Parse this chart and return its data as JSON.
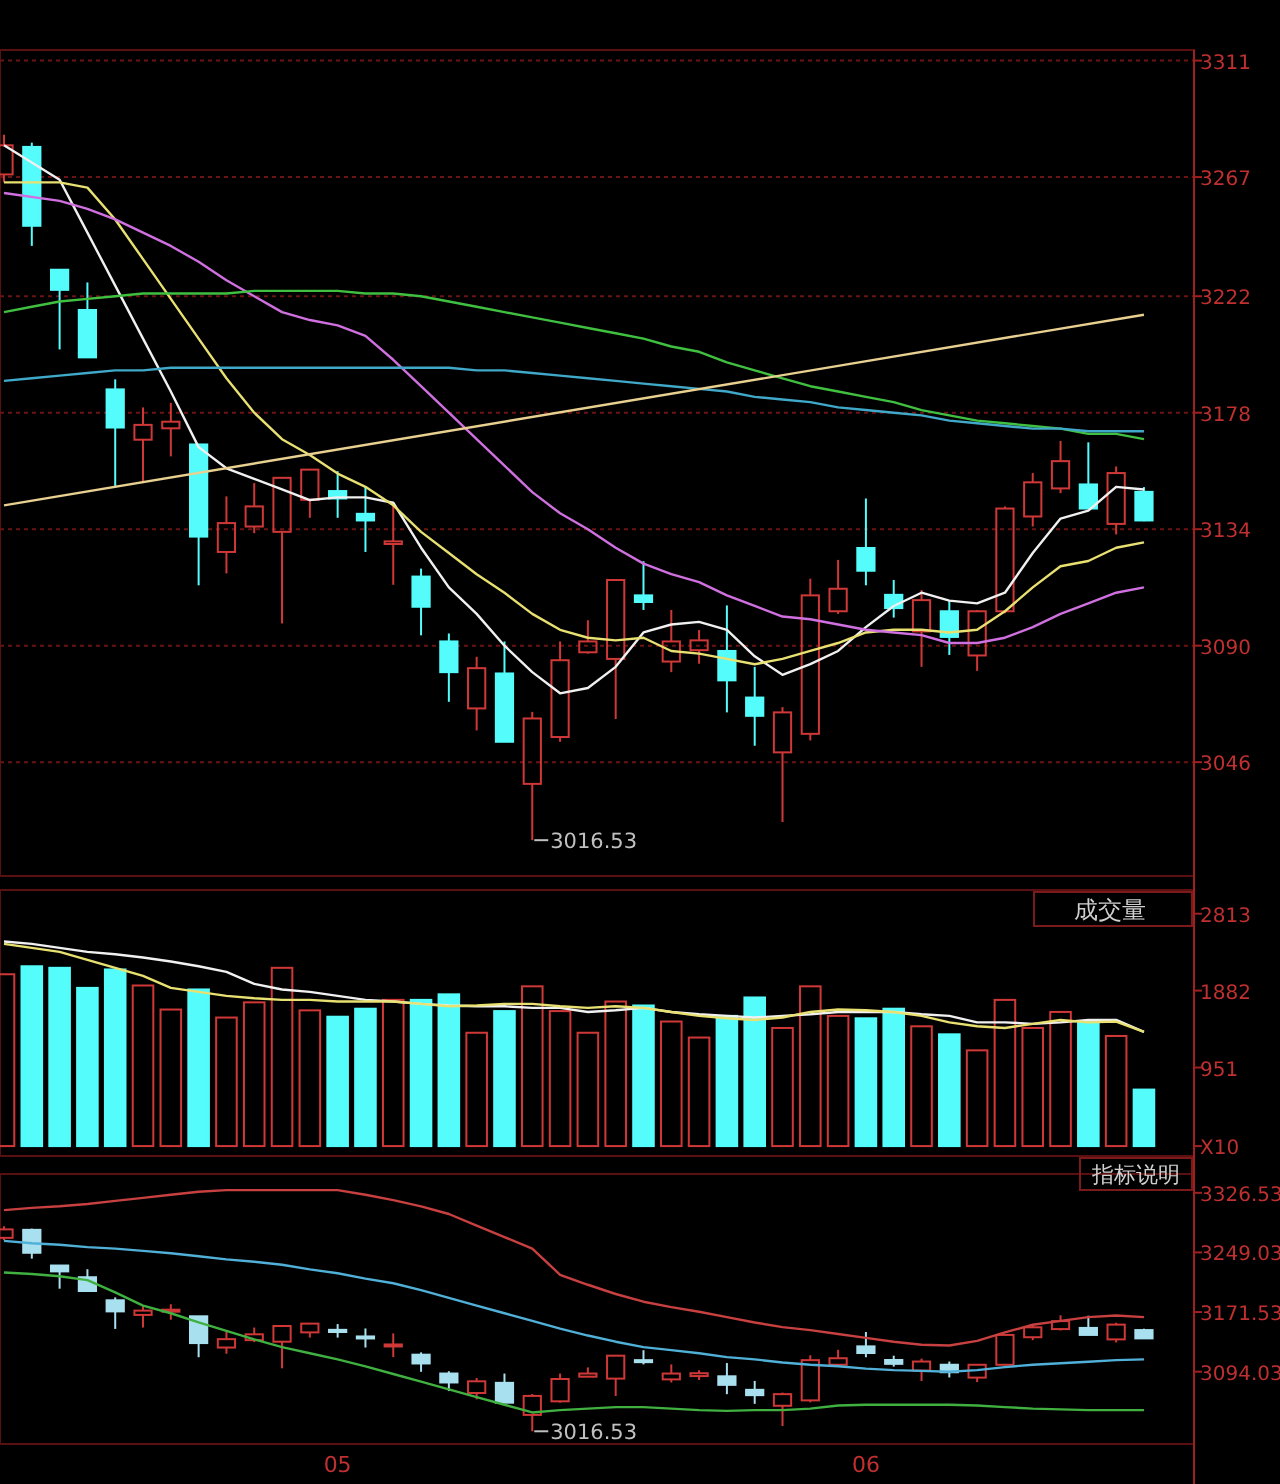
{
  "chart_data": [
    {
      "type": "candlestick",
      "categories": [
        null,
        null,
        null,
        null,
        null,
        null,
        null,
        null,
        null,
        null,
        null,
        null,
        null,
        null,
        null,
        null,
        null,
        null,
        null,
        null,
        null,
        null,
        null,
        null,
        null,
        null,
        null,
        null,
        null,
        null,
        null,
        null,
        null,
        null,
        null,
        null,
        null,
        null,
        null,
        null,
        null,
        null
      ],
      "ohlc": [
        [
          3268,
          3283,
          3265,
          3279
        ],
        [
          3278.4,
          3280,
          3241,
          3248.6
        ],
        [
          3232,
          3232,
          3201.9,
          3224.4
        ],
        [
          3216.8,
          3227.2,
          3198.9,
          3198.9
        ],
        [
          3186.8,
          3190.6,
          3149.6,
          3172.4
        ],
        [
          3167.8,
          3180,
          3151.4,
          3173.4
        ],
        [
          3172.1,
          3181.7,
          3161.5,
          3174.6
        ],
        [
          3166,
          3166,
          3112.8,
          3131.2
        ],
        [
          3125.4,
          3146.4,
          3117.3,
          3136.3
        ],
        [
          3135,
          3151.4,
          3132.5,
          3142.6
        ],
        [
          3133,
          3153.4,
          3098.4,
          3153.4
        ],
        [
          3145.1,
          3156.5,
          3138.3,
          3156.5
        ],
        [
          3148.4,
          3155.9,
          3138.3,
          3145.6
        ],
        [
          3139.8,
          3150.2,
          3125.4,
          3137.3
        ],
        [
          3128.4,
          3143.8,
          3113,
          3129.4
        ],
        [
          3116.1,
          3119.1,
          3093.9,
          3104.7
        ],
        [
          3091.6,
          3094.6,
          3068.8,
          3080
        ],
        [
          3066.3,
          3085.8,
          3058,
          3081.5
        ],
        [
          3079.5,
          3091.6,
          3053.7,
          3053.7
        ],
        [
          3037.8,
          3065,
          3016.53,
          3062.5
        ],
        [
          3055.5,
          3091.6,
          3053.7,
          3084.5
        ],
        [
          3087.5,
          3099.6,
          3087,
          3091.6
        ],
        [
          3085,
          3114.8,
          3062.3,
          3114.8
        ],
        [
          3109,
          3121.9,
          3103.5,
          3106.5
        ],
        [
          3084,
          3103.5,
          3080,
          3091.6
        ],
        [
          3088.3,
          3095.9,
          3083.2,
          3092
        ],
        [
          3088,
          3105.2,
          3064.8,
          3076.9
        ],
        [
          3070.4,
          3082,
          3052.2,
          3063.5
        ],
        [
          3049.7,
          3066.8,
          3023.4,
          3064.8
        ],
        [
          3056.7,
          3115.3,
          3054.2,
          3109
        ],
        [
          3103,
          3122.4,
          3102,
          3111.5
        ],
        [
          3126.9,
          3145.6,
          3112.8,
          3118.3
        ],
        [
          3109.2,
          3114.8,
          3100.6,
          3104.2
        ],
        [
          3095.4,
          3111,
          3082,
          3107.2
        ],
        [
          3103,
          3107.2,
          3086.5,
          3093.3
        ],
        [
          3086.3,
          3103.5,
          3080.5,
          3103
        ],
        [
          3103,
          3142.6,
          3102.2,
          3141.8
        ],
        [
          3138.8,
          3155.2,
          3135,
          3151.7
        ],
        [
          3149.4,
          3167.3,
          3147.6,
          3159.7
        ],
        [
          3150.9,
          3166.8,
          3141.8,
          3141.8
        ],
        [
          3136,
          3157.7,
          3132,
          3155.2
        ],
        [
          3148.1,
          3149.9,
          3137,
          3137.3
        ]
      ],
      "colors": [
        "#d03838",
        "#54fcfc",
        "#54fcfc",
        "#54fcfc",
        "#54fcfc",
        "#d03838",
        "#d03838",
        "#54fcfc",
        "#d03838",
        "#d03838",
        "#d03838",
        "#d03838",
        "#54fcfc",
        "#54fcfc",
        "#d03838",
        "#54fcfc",
        "#54fcfc",
        "#d03838",
        "#54fcfc",
        "#d03838",
        "#d03838",
        "#d03838",
        "#d03838",
        "#54fcfc",
        "#d03838",
        "#d03838",
        "#54fcfc",
        "#54fcfc",
        "#d03838",
        "#d03838",
        "#d03838",
        "#54fcfc",
        "#54fcfc",
        "#d03838",
        "#54fcfc",
        "#d03838",
        "#d03838",
        "#d03838",
        "#d03838",
        "#54fcfc",
        "#d03838",
        "#54fcfc"
      ],
      "series": [
        {
          "type": "line",
          "color": "#f0f0f0",
          "values": [
            3279,
            null,
            3266,
            3246,
            3226,
            3206,
            3186,
            3165,
            3157,
            3153,
            3149,
            3145,
            3146,
            3146,
            3144,
            3127,
            3112,
            3102,
            3090,
            3080,
            3072,
            3074,
            3082,
            3095,
            3098,
            3099,
            3096,
            3086,
            3079,
            3083,
            3088,
            3097,
            3105,
            3110,
            3107,
            3106,
            3110,
            3125,
            3138,
            3141,
            3150,
            3149
          ]
        },
        {
          "type": "line",
          "color": "#e8e070",
          "values": [
            3265,
            3265,
            3265,
            3263,
            3251,
            3236,
            3221,
            3206,
            3191,
            3178,
            3168,
            3162,
            3155,
            3150,
            3143,
            3133,
            3125,
            3117,
            3110,
            3102,
            3096,
            3093,
            3092,
            3093,
            3088,
            3087,
            3085,
            3083,
            3085,
            3088,
            3091,
            3095,
            3096,
            3096,
            3095,
            3096,
            3103,
            3112,
            3120,
            3122,
            3127,
            3129
          ]
        },
        {
          "type": "line",
          "color": "#d070e0",
          "values": [
            3261,
            null,
            3258,
            3255,
            3251,
            3246,
            3241,
            3235,
            3228,
            3222,
            3216,
            3213,
            3211,
            3207,
            3198,
            3188,
            3178,
            3168,
            3158,
            3148,
            3140,
            3134,
            3127,
            3121,
            3117,
            3114,
            3109,
            3105,
            3101,
            3100,
            3098,
            3096,
            3095,
            3094,
            3091,
            3091,
            3093,
            3097,
            3102,
            3106,
            3110,
            3112
          ]
        },
        {
          "type": "line",
          "color": "#40c040",
          "values": [
            3216,
            3218,
            3220,
            3221,
            3222,
            3223,
            3223,
            3223,
            3223,
            3224,
            3224,
            3224,
            3224,
            3223,
            3223,
            3222,
            3220,
            3218,
            3216,
            3214,
            3212,
            3210,
            3208,
            3206,
            3203,
            3201,
            3197,
            3194,
            3191,
            3188,
            3186,
            3184,
            3182,
            3179,
            3177,
            3175,
            3174,
            3173,
            3172,
            3170,
            3170,
            3168
          ]
        },
        {
          "type": "line",
          "color": "#40a8c8",
          "values": [
            3190,
            3191,
            3192,
            3193,
            3194,
            3194,
            3195,
            3195,
            3195,
            3195,
            3195,
            3195,
            3195,
            3195,
            3195,
            3195,
            3195,
            3194,
            3194,
            3193,
            3192,
            3191,
            3190,
            3189,
            3188,
            3187,
            3186,
            3184,
            3183,
            3182,
            3180,
            3179,
            3178,
            3177,
            3175,
            3174,
            3173,
            3172,
            3172,
            3171,
            3171,
            3171
          ]
        },
        {
          "type": "line",
          "color": "#e8d090",
          "values": [
            3143,
            null,
            null,
            null,
            null,
            null,
            null,
            null,
            null,
            null,
            null,
            null,
            null,
            null,
            null,
            null,
            null,
            null,
            null,
            null,
            null,
            null,
            null,
            null,
            null,
            null,
            null,
            null,
            null,
            null,
            null,
            null,
            null,
            null,
            null,
            null,
            null,
            null,
            null,
            null,
            null,
            3215
          ]
        }
      ],
      "ylim": [
        3003,
        3315
      ],
      "yticks": [
        3046,
        3090,
        3134,
        3178,
        3222,
        3267,
        3311
      ],
      "grid": "y",
      "tick_labels": "y",
      "annotations": [
        "3016.53"
      ]
    },
    {
      "type": "bar",
      "title": "成交量",
      "categories": [
        null,
        null,
        null,
        null,
        null,
        null,
        null,
        null,
        null,
        null,
        null,
        null,
        null,
        null,
        null,
        null,
        null,
        null,
        null,
        null,
        null,
        null,
        null,
        null,
        null,
        null,
        null,
        null,
        null,
        null,
        null,
        null,
        null,
        null,
        null,
        null,
        null,
        null,
        null,
        null,
        null,
        null
      ],
      "series": [
        {
          "type": "bar",
          "values": [
            2080,
            2177,
            2158,
            1915,
            2138,
            1944,
            1653,
            1896,
            1556,
            1740,
            2158,
            1643,
            1566,
            1663,
            1770,
            1770,
            1837,
            1372,
            1634,
            1934,
            1634,
            1372,
            1750,
            1702,
            1508,
            1314,
            1576,
            1799,
            1430,
            1934,
            1576,
            1547,
            1663,
            1450,
            1353,
            1159,
            1770,
            1430,
            1624,
            1508,
            1333,
            684
          ],
          "colors": [
            "#d03838",
            "#54fcfc",
            "#54fcfc",
            "#54fcfc",
            "#54fcfc",
            "#d03838",
            "#d03838",
            "#54fcfc",
            "#d03838",
            "#d03838",
            "#d03838",
            "#d03838",
            "#54fcfc",
            "#54fcfc",
            "#d03838",
            "#54fcfc",
            "#54fcfc",
            "#d03838",
            "#54fcfc",
            "#d03838",
            "#d03838",
            "#d03838",
            "#d03838",
            "#54fcfc",
            "#d03838",
            "#d03838",
            "#54fcfc",
            "#54fcfc",
            "#d03838",
            "#d03838",
            "#d03838",
            "#54fcfc",
            "#54fcfc",
            "#d03838",
            "#54fcfc",
            "#d03838",
            "#d03838",
            "#d03838",
            "#d03838",
            "#54fcfc",
            "#d03838",
            "#54fcfc"
          ]
        },
        {
          "type": "line",
          "color": "#f0f0f0",
          "values": [
            2477,
            2448,
            2400,
            2351,
            2322,
            2283,
            2235,
            2177,
            2109,
            1964,
            1896,
            1867,
            1818,
            1770,
            1750,
            1721,
            1702,
            1692,
            1692,
            1673,
            1673,
            1624,
            1644,
            1673,
            1624,
            1595,
            1576,
            1556,
            1576,
            1595,
            1624,
            1624,
            1624,
            1595,
            1576,
            1498,
            1498,
            1479,
            1498,
            1527,
            1527,
            1382
          ]
        },
        {
          "type": "line",
          "color": "#e8e070",
          "values": [
            2448,
            2400,
            2351,
            2254,
            2157,
            2061,
            1915,
            1867,
            1818,
            1789,
            1770,
            1770,
            1750,
            1750,
            1750,
            1721,
            1692,
            1702,
            1721,
            1721,
            1692,
            1673,
            1692,
            1673,
            1624,
            1576,
            1547,
            1527,
            1556,
            1624,
            1653,
            1644,
            1624,
            1576,
            1498,
            1450,
            1430,
            1479,
            1527,
            1498,
            1508,
            1382
          ]
        }
      ],
      "ylim": [
        -120,
        3100
      ],
      "yticks": [
        {
          "value": 0,
          "label": "X10"
        },
        951,
        1882,
        2813
      ],
      "tick_labels": "y"
    },
    {
      "type": "candlestick",
      "categories": [
        null,
        null,
        null,
        null,
        null,
        null,
        null,
        null,
        null,
        null,
        null,
        null,
        "05",
        null,
        null,
        null,
        null,
        null,
        null,
        null,
        null,
        null,
        null,
        null,
        null,
        null,
        null,
        null,
        null,
        null,
        null,
        "06",
        null,
        null,
        null,
        null,
        null,
        null,
        null,
        null,
        null,
        null
      ],
      "ohlc": [
        [
          3268,
          3283,
          3265,
          3279
        ],
        [
          3278.4,
          3280,
          3241,
          3248.6
        ],
        [
          3232,
          3232,
          3201.9,
          3224.4
        ],
        [
          3216.8,
          3227.2,
          3198.9,
          3198.9
        ],
        [
          3186.8,
          3190.6,
          3149.6,
          3172.4
        ],
        [
          3167.8,
          3180,
          3151.4,
          3173.4
        ],
        [
          3172.1,
          3181.7,
          3161.5,
          3174.6
        ],
        [
          3166,
          3166,
          3112.8,
          3131.2
        ],
        [
          3125.4,
          3146.4,
          3117.3,
          3136.3
        ],
        [
          3135,
          3151.4,
          3132.5,
          3142.6
        ],
        [
          3133,
          3153.4,
          3098.4,
          3153.4
        ],
        [
          3145.1,
          3156.5,
          3138.3,
          3156.5
        ],
        [
          3148.4,
          3155.9,
          3138.3,
          3145.6
        ],
        [
          3139.8,
          3150.2,
          3125.4,
          3137.3
        ],
        [
          3128.4,
          3143.8,
          3113,
          3129.4
        ],
        [
          3116.1,
          3119.1,
          3093.9,
          3104.7
        ],
        [
          3091.6,
          3094.6,
          3068.8,
          3080
        ],
        [
          3066.3,
          3085.8,
          3058,
          3081.5
        ],
        [
          3079.5,
          3091.6,
          3053.7,
          3053.7
        ],
        [
          3037.8,
          3065,
          3016.53,
          3062.5
        ],
        [
          3055.5,
          3091.6,
          3053.7,
          3084.5
        ],
        [
          3087.5,
          3099.6,
          3087,
          3091.6
        ],
        [
          3085,
          3114.8,
          3062.3,
          3114.8
        ],
        [
          3109,
          3121.9,
          3103.5,
          3106.5
        ],
        [
          3084,
          3103.5,
          3080,
          3091.6
        ],
        [
          3088.3,
          3095.9,
          3083.2,
          3092
        ],
        [
          3088,
          3105.2,
          3064.8,
          3076.9
        ],
        [
          3070.4,
          3082,
          3052.2,
          3063.5
        ],
        [
          3049.7,
          3066.8,
          3023.4,
          3064.8
        ],
        [
          3056.7,
          3115.3,
          3054.2,
          3109
        ],
        [
          3103,
          3122.4,
          3102,
          3111.5
        ],
        [
          3126.9,
          3145.6,
          3112.8,
          3118.3
        ],
        [
          3109.2,
          3114.8,
          3100.6,
          3104.2
        ],
        [
          3095.4,
          3111,
          3082,
          3107.2
        ],
        [
          3103,
          3107.2,
          3086.5,
          3093.3
        ],
        [
          3086.3,
          3103.5,
          3080.5,
          3103
        ],
        [
          3103,
          3142.6,
          3102.2,
          3141.8
        ],
        [
          3138.8,
          3155.2,
          3135,
          3151.7
        ],
        [
          3149.4,
          3167.3,
          3147.6,
          3159.7
        ],
        [
          3150.9,
          3166.8,
          3141.8,
          3141.8
        ],
        [
          3136,
          3157.7,
          3132,
          3155.2
        ],
        [
          3148.1,
          3149.9,
          3137,
          3137.3
        ]
      ],
      "colors": [
        "#d03838",
        "#a8e0f0",
        "#a8e0f0",
        "#a8e0f0",
        "#a8e0f0",
        "#d03838",
        "#d03838",
        "#a8e0f0",
        "#d03838",
        "#d03838",
        "#d03838",
        "#d03838",
        "#a8e0f0",
        "#a8e0f0",
        "#d03838",
        "#a8e0f0",
        "#a8e0f0",
        "#d03838",
        "#a8e0f0",
        "#d03838",
        "#d03838",
        "#d03838",
        "#d03838",
        "#a8e0f0",
        "#d03838",
        "#d03838",
        "#a8e0f0",
        "#a8e0f0",
        "#d03838",
        "#d03838",
        "#d03838",
        "#a8e0f0",
        "#a8e0f0",
        "#d03838",
        "#a8e0f0",
        "#d03838",
        "#d03838",
        "#d03838",
        "#d03838",
        "#a8e0f0",
        "#d03838",
        "#a8e0f0"
      ],
      "series": [
        {
          "type": "line",
          "color": "#c84040",
          "values": [
            3304,
            3307,
            3309,
            3312,
            3316,
            3320,
            3324,
            3328,
            3330,
            3330,
            3330,
            3330,
            3330,
            3324,
            3317,
            3309,
            3299,
            3284,
            3269,
            3254,
            3220,
            3207,
            3195,
            3185,
            3178,
            3172,
            3165,
            3158,
            3152,
            3148,
            3143,
            3138,
            3133,
            3129,
            3128,
            3134,
            3145,
            3155,
            3160,
            3165,
            3167,
            3165
          ]
        },
        {
          "type": "line",
          "color": "#50b0d8",
          "values": [
            3264,
            3261,
            3259,
            3256,
            3254,
            3251,
            3248,
            3244,
            3240,
            3237,
            3233,
            3227,
            3222,
            3215,
            3209,
            3200,
            3190,
            3180,
            3170,
            3160,
            3150,
            3141,
            3133,
            3126,
            3122,
            3118,
            3113,
            3110,
            3106,
            3103,
            3101,
            3098,
            3096,
            3095,
            3094,
            3096,
            3100,
            3103,
            3105,
            3107,
            3109,
            3110
          ]
        },
        {
          "type": "line",
          "color": "#40b040",
          "values": [
            3223,
            3221,
            3218,
            3213,
            3197,
            3180,
            3170,
            3158,
            3147,
            3136,
            3126,
            3118,
            3110,
            3101,
            3091,
            3081,
            3071,
            3061,
            3051,
            3041,
            3044,
            3046,
            3048,
            3048,
            3046,
            3044,
            3043,
            3044,
            3044,
            3046,
            3050,
            3051,
            3051,
            3051,
            3051,
            3050,
            3048,
            3046,
            3045,
            3044,
            3044,
            3044
          ]
        }
      ],
      "ylim": [
        3000,
        3351
      ],
      "yticks": [
        3094.03,
        3171.53,
        3249.03,
        3326.53
      ],
      "annotations": [
        "指标说明",
        "3016.53"
      ]
    }
  ]
}
